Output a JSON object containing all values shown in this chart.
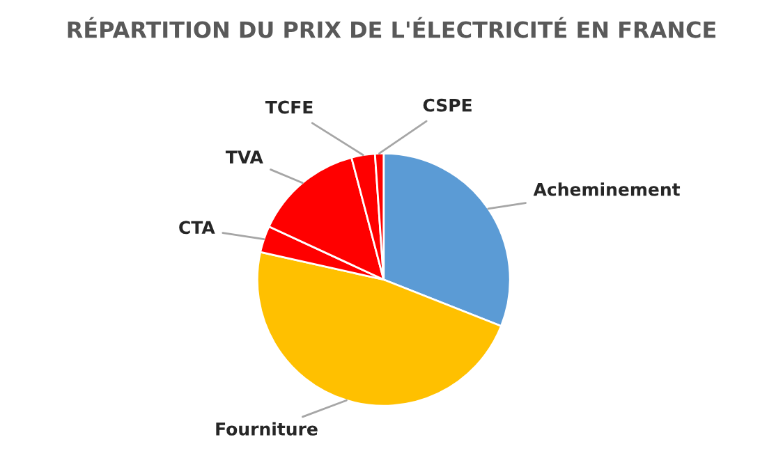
{
  "chart_data": {
    "type": "pie",
    "title": "RÉPARTITION DU PRIX DE L'ÉLECTRICITÉ EN FRANCE",
    "categories": [
      "Acheminement",
      "Fourniture",
      "CTA",
      "TVA",
      "TCFE",
      "CSPE"
    ],
    "values": [
      31,
      47.5,
      3.4,
      14,
      3,
      1.1
    ],
    "colors": [
      "#5b9bd5",
      "#ffc000",
      "#ff0000",
      "#ff0000",
      "#ff0000",
      "#ff0000"
    ],
    "legend": false
  }
}
